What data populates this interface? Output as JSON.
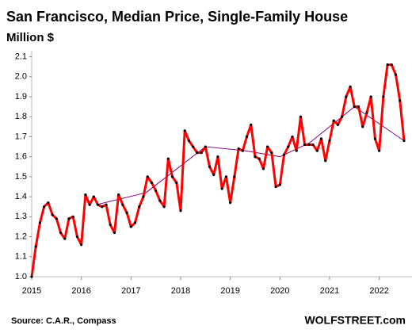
{
  "chart_data": {
    "type": "line",
    "title": "San Francisco, Median Price, Single-Family House",
    "subtitle": "Million $",
    "source": "Source: C.A.R., Compass",
    "brand": "WOLFSTREET.com",
    "xlim": [
      2015,
      2022.66
    ],
    "ylim": [
      1.0,
      2.13
    ],
    "xticks": [
      2015,
      2016,
      2017,
      2018,
      2019,
      2020,
      2021,
      2022
    ],
    "yticks": [
      {
        "value": 1,
        "label": "1.0"
      },
      1.1,
      1.2,
      1.3,
      1.4,
      1.5,
      1.6,
      1.7,
      1.8,
      1.9,
      {
        "value": 2,
        "label": "2.0"
      },
      2.1
    ],
    "series": [
      {
        "color": "#ff0000",
        "x": [
          2015,
          2015.083,
          2015.167,
          2015.25,
          2015.333,
          2015.417,
          2015.5,
          2015.583,
          2015.667,
          2015.75,
          2015.833,
          2015.917,
          2016,
          2016.083,
          2016.167,
          2016.25,
          2016.333,
          2016.417,
          2016.5,
          2016.583,
          2016.667,
          2016.75,
          2016.833,
          2016.917,
          2017,
          2017.083,
          2017.167,
          2017.25,
          2017.333,
          2017.417,
          2017.5,
          2017.583,
          2017.667,
          2017.75,
          2017.833,
          2017.917,
          2018,
          2018.083,
          2018.167,
          2018.25,
          2018.333,
          2018.417,
          2018.5,
          2018.583,
          2018.667,
          2018.75,
          2018.833,
          2018.917,
          2019,
          2019.083,
          2019.167,
          2019.25,
          2019.333,
          2019.417,
          2019.5,
          2019.583,
          2019.667,
          2019.75,
          2019.833,
          2019.917,
          2020,
          2020.083,
          2020.167,
          2020.25,
          2020.333,
          2020.417,
          2020.5,
          2020.583,
          2020.667,
          2020.75,
          2020.833,
          2020.917,
          2021,
          2021.083,
          2021.167,
          2021.25,
          2021.333,
          2021.417,
          2021.5,
          2021.583,
          2021.667,
          2021.75,
          2021.833,
          2021.917,
          2022,
          2022.083,
          2022.167,
          2022.25,
          2022.333,
          2022.417,
          2022.5
        ],
        "values": [
          1.0,
          1.15,
          1.27,
          1.35,
          1.37,
          1.31,
          1.29,
          1.22,
          1.19,
          1.29,
          1.3,
          1.2,
          1.16,
          1.41,
          1.36,
          1.4,
          1.36,
          1.35,
          1.36,
          1.26,
          1.22,
          1.41,
          1.36,
          1.32,
          1.25,
          1.27,
          1.35,
          1.4,
          1.5,
          1.47,
          1.43,
          1.38,
          1.35,
          1.59,
          1.5,
          1.47,
          1.33,
          1.73,
          1.68,
          1.65,
          1.62,
          1.62,
          1.65,
          1.55,
          1.51,
          1.6,
          1.44,
          1.5,
          1.37,
          1.5,
          1.64,
          1.63,
          1.7,
          1.76,
          1.6,
          1.59,
          1.54,
          1.65,
          1.62,
          1.45,
          1.46,
          1.61,
          1.65,
          1.7,
          1.63,
          1.8,
          1.66,
          1.66,
          1.66,
          1.63,
          1.69,
          1.58,
          1.68,
          1.78,
          1.76,
          1.8,
          1.9,
          1.95,
          1.85,
          1.85,
          1.75,
          1.82,
          1.9,
          1.69,
          1.63,
          1.9,
          2.06,
          2.06,
          2.01,
          1.88,
          1.68
        ]
      },
      {
        "color": "#800080",
        "x": [
          2016.3,
          2017.3,
          2018.5,
          2019.3,
          2020.0,
          2020.6,
          2021.5,
          2022.5
        ],
        "values": [
          1.36,
          1.42,
          1.65,
          1.63,
          1.6,
          1.67,
          1.85,
          1.68
        ]
      }
    ]
  }
}
